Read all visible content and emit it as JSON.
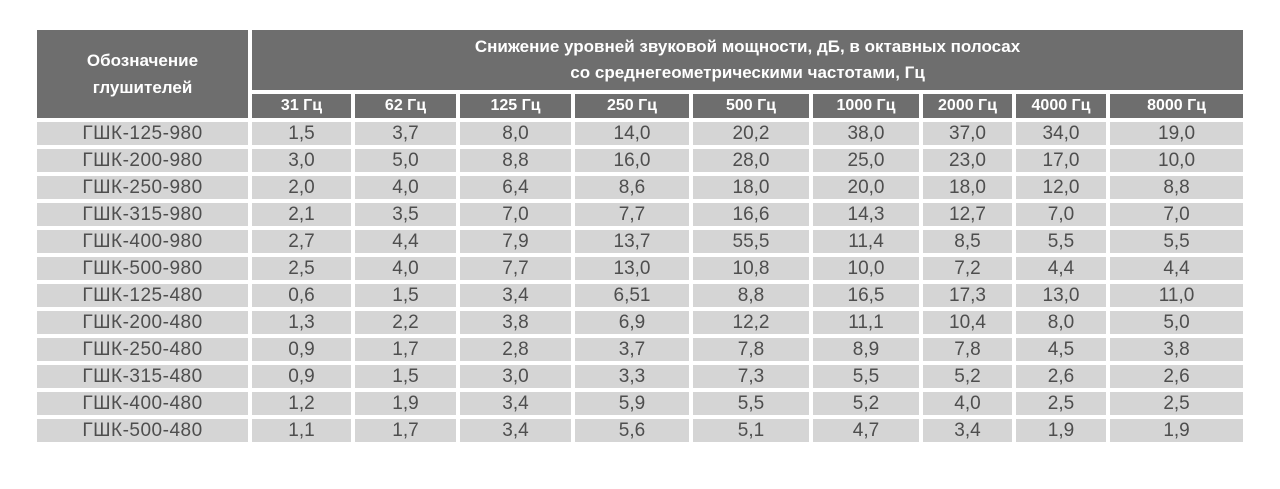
{
  "colors": {
    "header_bg": "#6e6e6e",
    "header_text": "#ffffff",
    "row_bg": "#d5d5d5",
    "row_text": "#4e4e4e",
    "page_bg": "#ffffff"
  },
  "table": {
    "col1_header_line1": "Обозначение",
    "col1_header_line2": "глушителей",
    "group_header_line1": "Снижение уровней звуковой мощности, дБ, в октавных полосах",
    "group_header_line2": "со среднегеометрическими частотами, Гц",
    "freq_headers": [
      "31 Гц",
      "62 Гц",
      "125 Гц",
      "250 Гц",
      "500 Гц",
      "1000 Гц",
      "2000 Гц",
      "4000 Гц",
      "8000 Гц"
    ],
    "rows": [
      {
        "name": "ГШК-125-980",
        "values": [
          "1,5",
          "3,7",
          "8,0",
          "14,0",
          "20,2",
          "38,0",
          "37,0",
          "34,0",
          "19,0"
        ]
      },
      {
        "name": "ГШК-200-980",
        "values": [
          "3,0",
          "5,0",
          "8,8",
          "16,0",
          "28,0",
          "25,0",
          "23,0",
          "17,0",
          "10,0"
        ]
      },
      {
        "name": "ГШК-250-980",
        "values": [
          "2,0",
          "4,0",
          "6,4",
          "8,6",
          "18,0",
          "20,0",
          "18,0",
          "12,0",
          "8,8"
        ]
      },
      {
        "name": "ГШК-315-980",
        "values": [
          "2,1",
          "3,5",
          "7,0",
          "7,7",
          "16,6",
          "14,3",
          "12,7",
          "7,0",
          "7,0"
        ]
      },
      {
        "name": "ГШК-400-980",
        "values": [
          "2,7",
          "4,4",
          "7,9",
          "13,7",
          "55,5",
          "11,4",
          "8,5",
          "5,5",
          "5,5"
        ]
      },
      {
        "name": "ГШК-500-980",
        "values": [
          "2,5",
          "4,0",
          "7,7",
          "13,0",
          "10,8",
          "10,0",
          "7,2",
          "4,4",
          "4,4"
        ]
      },
      {
        "name": "ГШК-125-480",
        "values": [
          "0,6",
          "1,5",
          "3,4",
          "6,51",
          "8,8",
          "16,5",
          "17,3",
          "13,0",
          "11,0"
        ]
      },
      {
        "name": "ГШК-200-480",
        "values": [
          "1,3",
          "2,2",
          "3,8",
          "6,9",
          "12,2",
          "11,1",
          "10,4",
          "8,0",
          "5,0"
        ]
      },
      {
        "name": "ГШК-250-480",
        "values": [
          "0,9",
          "1,7",
          "2,8",
          "3,7",
          "7,8",
          "8,9",
          "7,8",
          "4,5",
          "3,8"
        ]
      },
      {
        "name": "ГШК-315-480",
        "values": [
          "0,9",
          "1,5",
          "3,0",
          "3,3",
          "7,3",
          "5,5",
          "5,2",
          "2,6",
          "2,6"
        ]
      },
      {
        "name": "ГШК-400-480",
        "values": [
          "1,2",
          "1,9",
          "3,4",
          "5,9",
          "5,5",
          "5,2",
          "4,0",
          "2,5",
          "2,5"
        ]
      },
      {
        "name": "ГШК-500-480",
        "values": [
          "1,1",
          "1,7",
          "3,4",
          "5,6",
          "5,1",
          "4,7",
          "3,4",
          "1,9",
          "1,9"
        ]
      }
    ]
  },
  "chart_data": {
    "type": "table",
    "title": "Снижение уровней звуковой мощности, дБ, в октавных полосах со среднегеометрическими частотами, Гц",
    "row_header": "Обозначение глушителей",
    "columns_hz": [
      31,
      62,
      125,
      250,
      500,
      1000,
      2000,
      4000,
      8000
    ],
    "rows": [
      {
        "name": "ГШК-125-980",
        "values": [
          1.5,
          3.7,
          8.0,
          14.0,
          20.2,
          38.0,
          37.0,
          34.0,
          19.0
        ]
      },
      {
        "name": "ГШК-200-980",
        "values": [
          3.0,
          5.0,
          8.8,
          16.0,
          28.0,
          25.0,
          23.0,
          17.0,
          10.0
        ]
      },
      {
        "name": "ГШК-250-980",
        "values": [
          2.0,
          4.0,
          6.4,
          8.6,
          18.0,
          20.0,
          18.0,
          12.0,
          8.8
        ]
      },
      {
        "name": "ГШК-315-980",
        "values": [
          2.1,
          3.5,
          7.0,
          7.7,
          16.6,
          14.3,
          12.7,
          7.0,
          7.0
        ]
      },
      {
        "name": "ГШК-400-980",
        "values": [
          2.7,
          4.4,
          7.9,
          13.7,
          55.5,
          11.4,
          8.5,
          5.5,
          5.5
        ]
      },
      {
        "name": "ГШК-500-980",
        "values": [
          2.5,
          4.0,
          7.7,
          13.0,
          10.8,
          10.0,
          7.2,
          4.4,
          4.4
        ]
      },
      {
        "name": "ГШК-125-480",
        "values": [
          0.6,
          1.5,
          3.4,
          6.51,
          8.8,
          16.5,
          17.3,
          13.0,
          11.0
        ]
      },
      {
        "name": "ГШК-200-480",
        "values": [
          1.3,
          2.2,
          3.8,
          6.9,
          12.2,
          11.1,
          10.4,
          8.0,
          5.0
        ]
      },
      {
        "name": "ГШК-250-480",
        "values": [
          0.9,
          1.7,
          2.8,
          3.7,
          7.8,
          8.9,
          7.8,
          4.5,
          3.8
        ]
      },
      {
        "name": "ГШК-315-480",
        "values": [
          0.9,
          1.5,
          3.0,
          3.3,
          7.3,
          5.5,
          5.2,
          2.6,
          2.6
        ]
      },
      {
        "name": "ГШК-400-480",
        "values": [
          1.2,
          1.9,
          3.4,
          5.9,
          5.5,
          5.2,
          4.0,
          2.5,
          2.5
        ]
      },
      {
        "name": "ГШК-500-480",
        "values": [
          1.1,
          1.7,
          3.4,
          5.6,
          5.1,
          4.7,
          3.4,
          1.9,
          1.9
        ]
      }
    ]
  }
}
